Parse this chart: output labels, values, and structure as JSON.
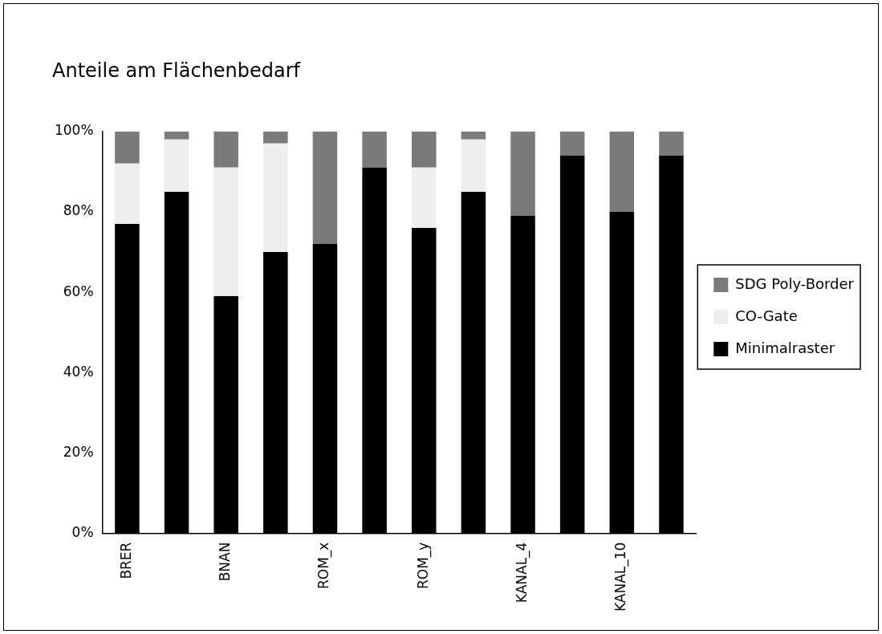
{
  "chart_data": {
    "type": "bar",
    "title": "Anteile am Flächenbedarf",
    "stacked": true,
    "categories": [
      "BRER",
      null,
      "BNAN",
      null,
      "ROM_x",
      null,
      "ROM_y",
      null,
      "KANAL_4",
      null,
      "KANAL_10",
      null
    ],
    "series": [
      {
        "name": "Minimalraster",
        "color": "#000000",
        "values": [
          77,
          85,
          59,
          70,
          72,
          91,
          76,
          85,
          79,
          94,
          80,
          94
        ]
      },
      {
        "name": "CO-Gate",
        "color": "#eeeeee",
        "values": [
          15,
          13,
          32,
          27,
          0,
          0,
          15,
          13,
          0,
          0,
          0,
          0
        ]
      },
      {
        "name": "SDG Poly-Border",
        "color": "#7a7a7a",
        "values": [
          8,
          2,
          9,
          3,
          28,
          9,
          9,
          2,
          21,
          6,
          20,
          6
        ]
      }
    ],
    "ylim": [
      0,
      100
    ],
    "yticks": [
      {
        "value": 0,
        "label": "0%"
      },
      {
        "value": 20,
        "label": "20%"
      },
      {
        "value": 40,
        "label": "40%"
      },
      {
        "value": 60,
        "label": "60%"
      },
      {
        "value": 80,
        "label": "80%"
      },
      {
        "value": 100,
        "label": "100%"
      }
    ],
    "grid": false,
    "legend": "right"
  }
}
